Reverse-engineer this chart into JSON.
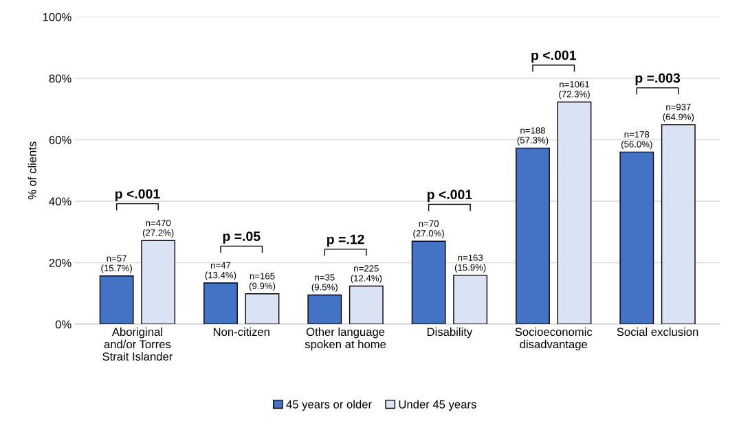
{
  "chart_data": {
    "type": "bar",
    "ylabel": "% of clients",
    "categories": [
      "Aboriginal\nand/or Torres\nStrait Islander",
      "Non-citizen",
      "Other language\nspoken at home",
      "Disability",
      "Socioeconomic\ndisadvantage",
      "Social exclusion"
    ],
    "series": [
      {
        "name": "45 years or older",
        "color": "#4472c4",
        "values": [
          15.7,
          13.4,
          9.5,
          27.0,
          57.3,
          56.0
        ],
        "value_labels": [
          "n=57\n(15.7%)",
          "n=47\n(13.4%)",
          "n=35\n(9.5%)",
          "n=70\n(27.0%)",
          "n=188\n(57.3%)",
          "n=178\n(56.0%)"
        ]
      },
      {
        "name": "Under 45 years",
        "color": "#dae3f3",
        "values": [
          27.2,
          9.9,
          12.4,
          15.9,
          72.3,
          64.9
        ],
        "value_labels": [
          "n=470\n(27.2%)",
          "n=165\n(9.9%)",
          "n=225\n(12.4%)",
          "n=163\n(15.9%)",
          "n=1061\n(72.3%)",
          "n=937\n(64.9%)"
        ]
      }
    ],
    "annotations": [
      "p <.001",
      "p =.05",
      "p =.12",
      "p <.001",
      "p <.001",
      "p =.003"
    ],
    "ylim": [
      0,
      100
    ],
    "yticks": [
      {
        "value": 0,
        "label": "0%"
      },
      {
        "value": 20,
        "label": "20%"
      },
      {
        "value": 40,
        "label": "40%"
      },
      {
        "value": 60,
        "label": "60%"
      },
      {
        "value": 80,
        "label": "80%"
      },
      {
        "value": 100,
        "label": "100%"
      }
    ],
    "grid": "y",
    "legend": "bottom"
  }
}
